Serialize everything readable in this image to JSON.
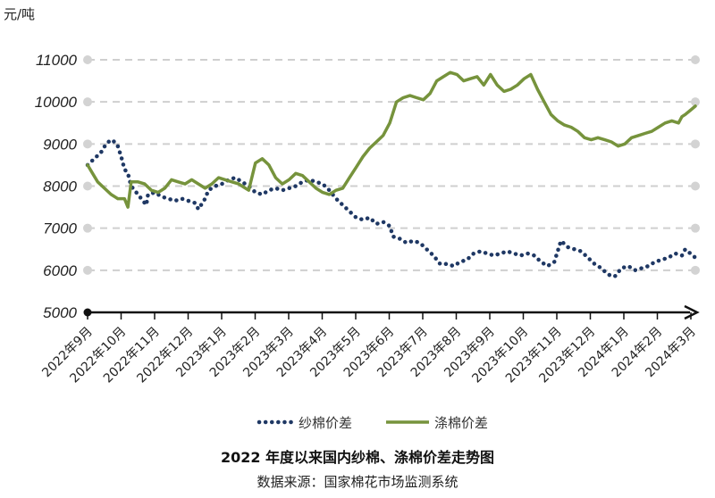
{
  "chart_data": {
    "type": "line",
    "title": "2022 年度以来国内纱棉、涤棉价差走势图",
    "source": "数据来源：国家棉花市场监测系统",
    "ylabel": "元/吨",
    "ylim": [
      5000,
      11000
    ],
    "yticks": [
      5000,
      6000,
      7000,
      8000,
      9000,
      10000,
      11000
    ],
    "grid": true,
    "legend_position": "bottom-center",
    "x_labels": [
      "2022年9月",
      "2022年10月",
      "2022年11月",
      "2022年12月",
      "2023年1月",
      "2023年2月",
      "2023年3月",
      "2023年4月",
      "2023年5月",
      "2023年6月",
      "2023年7月",
      "2023年8月",
      "2023年9月",
      "2023年10月",
      "2023年11月",
      "2023年12月",
      "2024年1月",
      "2024年2月",
      "2024年3月"
    ],
    "x_range": [
      0,
      18.1
    ],
    "series": [
      {
        "name": "纱棉价差",
        "style": "dotted",
        "color": "#1f3864",
        "points": [
          [
            0.0,
            8500
          ],
          [
            0.2,
            8650
          ],
          [
            0.4,
            8800
          ],
          [
            0.55,
            9000
          ],
          [
            0.7,
            9100
          ],
          [
            0.8,
            9050
          ],
          [
            0.9,
            8950
          ],
          [
            1.0,
            8700
          ],
          [
            1.1,
            8400
          ],
          [
            1.2,
            8300
          ],
          [
            1.3,
            8000
          ],
          [
            1.45,
            7850
          ],
          [
            1.6,
            7700
          ],
          [
            1.75,
            7550
          ],
          [
            1.8,
            7800
          ],
          [
            2.0,
            7850
          ],
          [
            2.2,
            7750
          ],
          [
            2.4,
            7700
          ],
          [
            2.6,
            7650
          ],
          [
            2.8,
            7700
          ],
          [
            3.0,
            7650
          ],
          [
            3.2,
            7600
          ],
          [
            3.3,
            7450
          ],
          [
            3.5,
            7700
          ],
          [
            3.6,
            7900
          ],
          [
            3.8,
            8000
          ],
          [
            4.0,
            8050
          ],
          [
            4.2,
            8150
          ],
          [
            4.4,
            8200
          ],
          [
            4.6,
            8100
          ],
          [
            4.8,
            8000
          ],
          [
            5.0,
            7850
          ],
          [
            5.2,
            7800
          ],
          [
            5.4,
            7900
          ],
          [
            5.6,
            7950
          ],
          [
            5.8,
            7900
          ],
          [
            6.0,
            7950
          ],
          [
            6.2,
            8000
          ],
          [
            6.4,
            8100
          ],
          [
            6.6,
            8150
          ],
          [
            6.8,
            8100
          ],
          [
            7.0,
            8050
          ],
          [
            7.2,
            7900
          ],
          [
            7.4,
            7700
          ],
          [
            7.6,
            7550
          ],
          [
            7.8,
            7400
          ],
          [
            8.0,
            7250
          ],
          [
            8.2,
            7200
          ],
          [
            8.4,
            7250
          ],
          [
            8.6,
            7100
          ],
          [
            8.8,
            7150
          ],
          [
            9.0,
            7050
          ],
          [
            9.1,
            6800
          ],
          [
            9.3,
            6750
          ],
          [
            9.5,
            6650
          ],
          [
            9.7,
            6700
          ],
          [
            9.9,
            6650
          ],
          [
            10.1,
            6500
          ],
          [
            10.3,
            6350
          ],
          [
            10.5,
            6150
          ],
          [
            10.7,
            6150
          ],
          [
            10.9,
            6100
          ],
          [
            11.1,
            6200
          ],
          [
            11.3,
            6250
          ],
          [
            11.5,
            6400
          ],
          [
            11.7,
            6450
          ],
          [
            11.9,
            6400
          ],
          [
            12.1,
            6350
          ],
          [
            12.3,
            6400
          ],
          [
            12.5,
            6450
          ],
          [
            12.7,
            6400
          ],
          [
            12.9,
            6350
          ],
          [
            13.1,
            6400
          ],
          [
            13.3,
            6350
          ],
          [
            13.5,
            6200
          ],
          [
            13.7,
            6100
          ],
          [
            13.9,
            6200
          ],
          [
            14.1,
            6700
          ],
          [
            14.3,
            6550
          ],
          [
            14.5,
            6500
          ],
          [
            14.7,
            6450
          ],
          [
            14.9,
            6300
          ],
          [
            15.1,
            6150
          ],
          [
            15.3,
            6050
          ],
          [
            15.5,
            5900
          ],
          [
            15.7,
            5850
          ],
          [
            15.9,
            6050
          ],
          [
            16.1,
            6100
          ],
          [
            16.3,
            6000
          ],
          [
            16.5,
            6050
          ],
          [
            16.7,
            6100
          ],
          [
            16.9,
            6200
          ],
          [
            17.1,
            6250
          ],
          [
            17.3,
            6300
          ],
          [
            17.5,
            6400
          ],
          [
            17.7,
            6350
          ],
          [
            17.8,
            6500
          ],
          [
            17.95,
            6400
          ],
          [
            18.1,
            6300
          ]
        ]
      },
      {
        "name": "涤棉价差",
        "style": "solid",
        "color": "#76933c",
        "points": [
          [
            0.0,
            8500
          ],
          [
            0.15,
            8300
          ],
          [
            0.3,
            8100
          ],
          [
            0.5,
            7950
          ],
          [
            0.7,
            7800
          ],
          [
            0.9,
            7700
          ],
          [
            1.1,
            7700
          ],
          [
            1.2,
            7500
          ],
          [
            1.3,
            8100
          ],
          [
            1.5,
            8100
          ],
          [
            1.7,
            8050
          ],
          [
            1.9,
            7900
          ],
          [
            2.1,
            7850
          ],
          [
            2.3,
            7950
          ],
          [
            2.5,
            8150
          ],
          [
            2.7,
            8100
          ],
          [
            2.9,
            8050
          ],
          [
            3.1,
            8150
          ],
          [
            3.3,
            8050
          ],
          [
            3.5,
            7950
          ],
          [
            3.7,
            8050
          ],
          [
            3.9,
            8200
          ],
          [
            4.1,
            8150
          ],
          [
            4.3,
            8100
          ],
          [
            4.5,
            8050
          ],
          [
            4.7,
            7950
          ],
          [
            4.8,
            7900
          ],
          [
            5.0,
            8550
          ],
          [
            5.2,
            8650
          ],
          [
            5.4,
            8500
          ],
          [
            5.6,
            8200
          ],
          [
            5.8,
            8050
          ],
          [
            6.0,
            8150
          ],
          [
            6.2,
            8300
          ],
          [
            6.4,
            8250
          ],
          [
            6.6,
            8100
          ],
          [
            6.8,
            7950
          ],
          [
            7.0,
            7850
          ],
          [
            7.2,
            7800
          ],
          [
            7.4,
            7900
          ],
          [
            7.6,
            7950
          ],
          [
            7.8,
            8200
          ],
          [
            8.0,
            8450
          ],
          [
            8.2,
            8700
          ],
          [
            8.4,
            8900
          ],
          [
            8.6,
            9050
          ],
          [
            8.8,
            9200
          ],
          [
            9.0,
            9500
          ],
          [
            9.2,
            10000
          ],
          [
            9.4,
            10100
          ],
          [
            9.6,
            10150
          ],
          [
            9.8,
            10100
          ],
          [
            10.0,
            10050
          ],
          [
            10.2,
            10200
          ],
          [
            10.4,
            10500
          ],
          [
            10.6,
            10600
          ],
          [
            10.8,
            10700
          ],
          [
            11.0,
            10650
          ],
          [
            11.2,
            10500
          ],
          [
            11.4,
            10550
          ],
          [
            11.6,
            10600
          ],
          [
            11.8,
            10400
          ],
          [
            12.0,
            10650
          ],
          [
            12.2,
            10400
          ],
          [
            12.4,
            10250
          ],
          [
            12.6,
            10300
          ],
          [
            12.8,
            10400
          ],
          [
            13.0,
            10550
          ],
          [
            13.2,
            10650
          ],
          [
            13.4,
            10300
          ],
          [
            13.6,
            10000
          ],
          [
            13.8,
            9700
          ],
          [
            14.0,
            9550
          ],
          [
            14.2,
            9450
          ],
          [
            14.4,
            9400
          ],
          [
            14.6,
            9300
          ],
          [
            14.8,
            9150
          ],
          [
            15.0,
            9100
          ],
          [
            15.2,
            9150
          ],
          [
            15.4,
            9100
          ],
          [
            15.6,
            9050
          ],
          [
            15.8,
            8950
          ],
          [
            16.0,
            9000
          ],
          [
            16.2,
            9150
          ],
          [
            16.4,
            9200
          ],
          [
            16.6,
            9250
          ],
          [
            16.8,
            9300
          ],
          [
            17.0,
            9400
          ],
          [
            17.2,
            9500
          ],
          [
            17.4,
            9550
          ],
          [
            17.6,
            9500
          ],
          [
            17.7,
            9650
          ],
          [
            17.8,
            9700
          ],
          [
            17.95,
            9800
          ],
          [
            18.1,
            9900
          ]
        ]
      }
    ]
  }
}
